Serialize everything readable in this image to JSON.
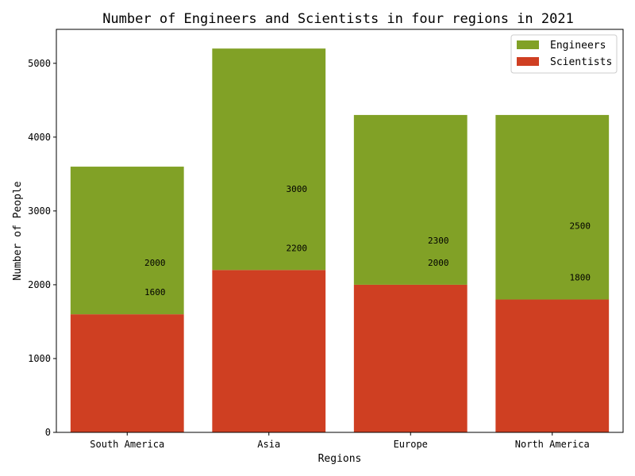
{
  "chart_data": {
    "type": "bar",
    "stacked": true,
    "title": "Number of Engineers and Scientists in four regions in 2021",
    "xlabel": "Regions",
    "ylabel": "Number of People",
    "categories": [
      "South America",
      "Asia",
      "Europe",
      "North America"
    ],
    "series": [
      {
        "name": "Scientists",
        "values": [
          1600,
          2200,
          2000,
          1800
        ],
        "color": "#cf3f22"
      },
      {
        "name": "Engineers",
        "values": [
          2000,
          3000,
          2300,
          2500
        ],
        "color": "#81a126"
      }
    ],
    "ylim": [
      0,
      5460
    ],
    "yticks": [
      0,
      1000,
      2000,
      3000,
      4000,
      5000
    ],
    "legend_position": "top-right",
    "legend_order": [
      "Engineers",
      "Scientists"
    ],
    "grid": false
  }
}
